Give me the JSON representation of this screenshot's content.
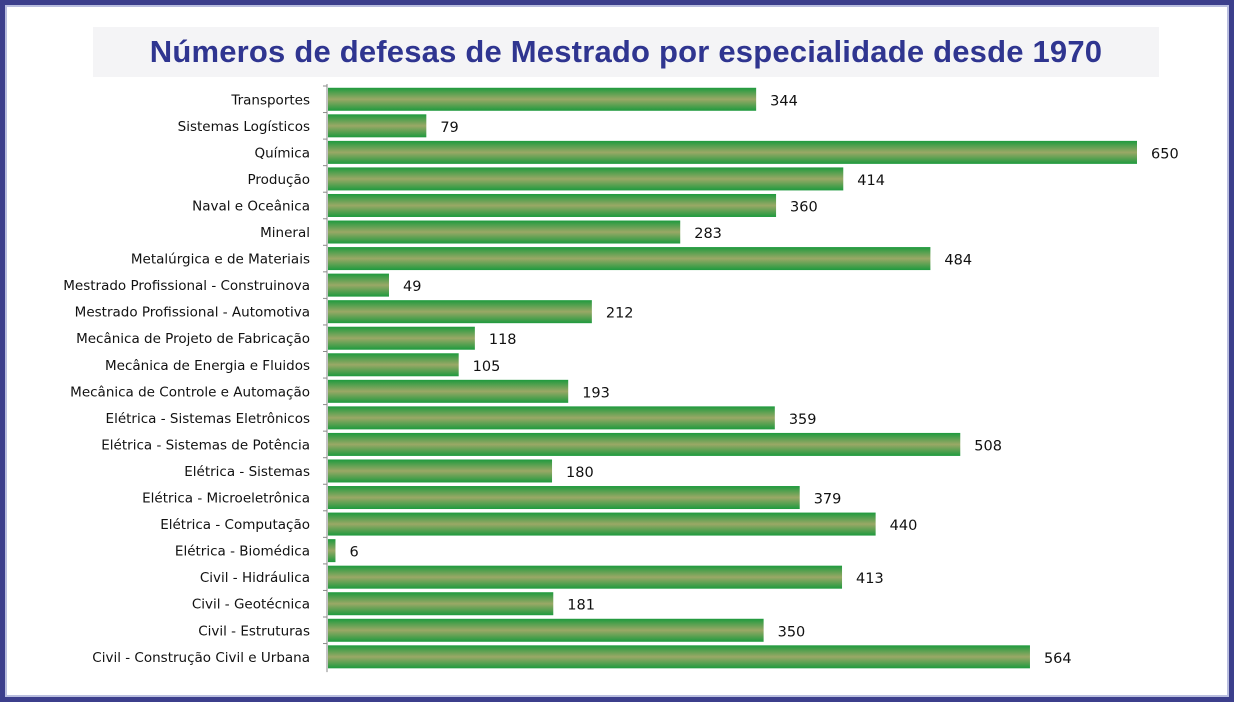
{
  "chart_data": {
    "type": "bar",
    "orientation": "horizontal",
    "title": "Números de defesas de Mestrado por especialidade desde 1970",
    "xlabel": "",
    "ylabel": "",
    "xlim": [
      0,
      650
    ],
    "grid": false,
    "legend": "none",
    "categories": [
      "Transportes",
      "Sistemas Logísticos",
      "Química",
      "Produção",
      "Naval e Oceânica",
      "Mineral",
      "Metalúrgica e de Materiais",
      "Mestrado Profissional - Construinova",
      "Mestrado Profissional - Automotiva",
      "Mecânica de Projeto de Fabricação",
      "Mecânica de Energia e Fluidos",
      "Mecânica de Controle e Automação",
      "Elétrica - Sistemas Eletrônicos",
      "Elétrica - Sistemas de Potência",
      "Elétrica - Sistemas",
      "Elétrica - Microeletrônica",
      "Elétrica - Computação",
      "Elétrica - Biomédica",
      "Civil - Hidráulica",
      "Civil - Geotécnica",
      "Civil - Estruturas",
      "Civil - Construção Civil e Urbana"
    ],
    "values": [
      344,
      79,
      650,
      414,
      360,
      283,
      484,
      49,
      212,
      118,
      105,
      193,
      359,
      508,
      180,
      379,
      440,
      6,
      413,
      181,
      350,
      564
    ],
    "colors": {
      "bar_edge": "#1e9a3e",
      "bar_mid": "#9aa866",
      "title": "#2f3590",
      "frame": "#3c3f8c"
    }
  }
}
